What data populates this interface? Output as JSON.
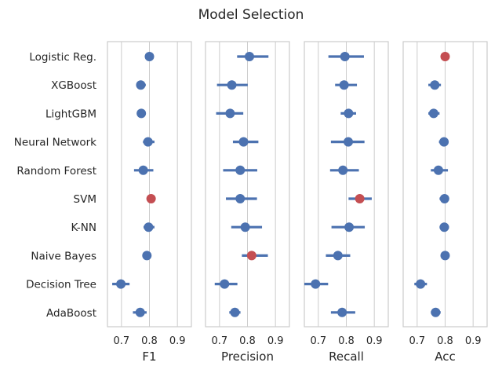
{
  "chart_data": {
    "type": "scatter",
    "title": "Model Selection",
    "models": [
      "Logistic Reg.",
      "XGBoost",
      "LightGBM",
      "Neural Network",
      "Random Forest",
      "SVM",
      "K-NN",
      "Naive Bayes",
      "Decision Tree",
      "AdaBoost"
    ],
    "xlim": [
      0.65,
      0.95
    ],
    "xticks": [
      "0.7",
      "0.8",
      "0.9"
    ],
    "grid": true,
    "colors": {
      "point": "#4c72b0",
      "highlight": "#c44e52",
      "grid": "#cccccc",
      "frame": "#cccccc"
    },
    "panels": [
      {
        "xlabel": "F1",
        "series": [
          {
            "model": "Logistic Reg.",
            "mean": 0.8,
            "lo": 0.8,
            "hi": 0.8,
            "best": false
          },
          {
            "model": "XGBoost",
            "mean": 0.769,
            "lo": 0.755,
            "hi": 0.787,
            "best": false
          },
          {
            "model": "LightGBM",
            "mean": 0.771,
            "lo": 0.757,
            "hi": 0.787,
            "best": false
          },
          {
            "model": "Neural Network",
            "mean": 0.795,
            "lo": 0.777,
            "hi": 0.818,
            "best": false
          },
          {
            "model": "Random Forest",
            "mean": 0.778,
            "lo": 0.745,
            "hi": 0.814,
            "best": false
          },
          {
            "model": "SVM",
            "mean": 0.806,
            "lo": 0.79,
            "hi": 0.82,
            "best": true
          },
          {
            "model": "K-NN",
            "mean": 0.797,
            "lo": 0.779,
            "hi": 0.818,
            "best": false
          },
          {
            "model": "Naive Bayes",
            "mean": 0.791,
            "lo": 0.791,
            "hi": 0.791,
            "best": false
          },
          {
            "model": "Decision Tree",
            "mean": 0.698,
            "lo": 0.667,
            "hi": 0.729,
            "best": false
          },
          {
            "model": "AdaBoost",
            "mean": 0.767,
            "lo": 0.741,
            "hi": 0.79,
            "best": false
          }
        ]
      },
      {
        "xlabel": "Precision",
        "series": [
          {
            "model": "Logistic Reg.",
            "mean": 0.807,
            "lo": 0.763,
            "hi": 0.875,
            "best": false
          },
          {
            "model": "XGBoost",
            "mean": 0.744,
            "lo": 0.691,
            "hi": 0.801,
            "best": false
          },
          {
            "model": "LightGBM",
            "mean": 0.738,
            "lo": 0.688,
            "hi": 0.785,
            "best": false
          },
          {
            "model": "Neural Network",
            "mean": 0.786,
            "lo": 0.748,
            "hi": 0.839,
            "best": false
          },
          {
            "model": "Random Forest",
            "mean": 0.774,
            "lo": 0.713,
            "hi": 0.835,
            "best": false
          },
          {
            "model": "SVM",
            "mean": 0.774,
            "lo": 0.723,
            "hi": 0.834,
            "best": false
          },
          {
            "model": "K-NN",
            "mean": 0.792,
            "lo": 0.742,
            "hi": 0.852,
            "best": false
          },
          {
            "model": "Naive Bayes",
            "mean": 0.815,
            "lo": 0.78,
            "hi": 0.873,
            "best": true
          },
          {
            "model": "Decision Tree",
            "mean": 0.718,
            "lo": 0.683,
            "hi": 0.764,
            "best": false
          },
          {
            "model": "AdaBoost",
            "mean": 0.755,
            "lo": 0.735,
            "hi": 0.775,
            "best": false
          }
        ]
      },
      {
        "xlabel": "Recall",
        "series": [
          {
            "model": "Logistic Reg.",
            "mean": 0.795,
            "lo": 0.736,
            "hi": 0.863,
            "best": false
          },
          {
            "model": "XGBoost",
            "mean": 0.792,
            "lo": 0.76,
            "hi": 0.838,
            "best": false
          },
          {
            "model": "LightGBM",
            "mean": 0.808,
            "lo": 0.78,
            "hi": 0.835,
            "best": false
          },
          {
            "model": "Neural Network",
            "mean": 0.807,
            "lo": 0.745,
            "hi": 0.865,
            "best": false
          },
          {
            "model": "Random Forest",
            "mean": 0.788,
            "lo": 0.742,
            "hi": 0.845,
            "best": false
          },
          {
            "model": "SVM",
            "mean": 0.848,
            "lo": 0.808,
            "hi": 0.891,
            "best": true
          },
          {
            "model": "K-NN",
            "mean": 0.81,
            "lo": 0.747,
            "hi": 0.866,
            "best": false
          },
          {
            "model": "Naive Bayes",
            "mean": 0.77,
            "lo": 0.727,
            "hi": 0.814,
            "best": false
          },
          {
            "model": "Decision Tree",
            "mean": 0.69,
            "lo": 0.65,
            "hi": 0.735,
            "best": false
          },
          {
            "model": "AdaBoost",
            "mean": 0.785,
            "lo": 0.745,
            "hi": 0.832,
            "best": false
          }
        ]
      },
      {
        "xlabel": "Acc",
        "series": [
          {
            "model": "Logistic Reg.",
            "mean": 0.8,
            "lo": 0.8,
            "hi": 0.8,
            "best": true
          },
          {
            "model": "XGBoost",
            "mean": 0.763,
            "lo": 0.74,
            "hi": 0.785,
            "best": false
          },
          {
            "model": "LightGBM",
            "mean": 0.759,
            "lo": 0.74,
            "hi": 0.78,
            "best": false
          },
          {
            "model": "Neural Network",
            "mean": 0.796,
            "lo": 0.778,
            "hi": 0.812,
            "best": false
          },
          {
            "model": "Random Forest",
            "mean": 0.776,
            "lo": 0.749,
            "hi": 0.81,
            "best": false
          },
          {
            "model": "SVM",
            "mean": 0.798,
            "lo": 0.78,
            "hi": 0.814,
            "best": false
          },
          {
            "model": "K-NN",
            "mean": 0.797,
            "lo": 0.78,
            "hi": 0.814,
            "best": false
          },
          {
            "model": "Naive Bayes",
            "mean": 0.8,
            "lo": 0.8,
            "hi": 0.8,
            "best": false
          },
          {
            "model": "Decision Tree",
            "mean": 0.712,
            "lo": 0.69,
            "hi": 0.735,
            "best": false
          },
          {
            "model": "AdaBoost",
            "mean": 0.766,
            "lo": 0.749,
            "hi": 0.784,
            "best": false
          }
        ]
      }
    ]
  }
}
